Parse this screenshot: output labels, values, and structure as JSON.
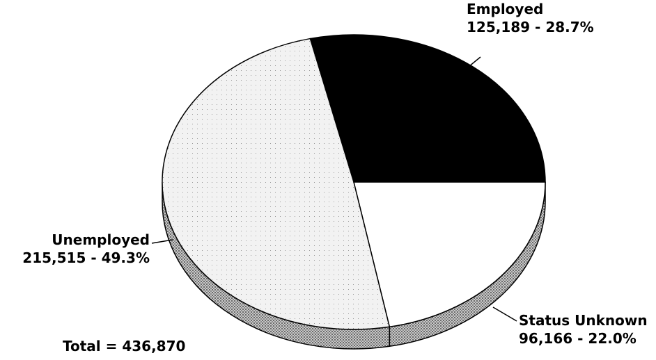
{
  "chart_data": {
    "type": "pie",
    "categories": [
      "Employed",
      "Status Unknown",
      "Unemployed"
    ],
    "values": [
      125189,
      96166,
      215515
    ],
    "value_labels": [
      "125,189 -  28.7%",
      "96,166 -  22.0%",
      "215,515 -  49.3%"
    ],
    "colors": [
      "#000000",
      "#ffffff",
      "#efefef"
    ],
    "annotations": [
      "Total = 436,870"
    ]
  }
}
